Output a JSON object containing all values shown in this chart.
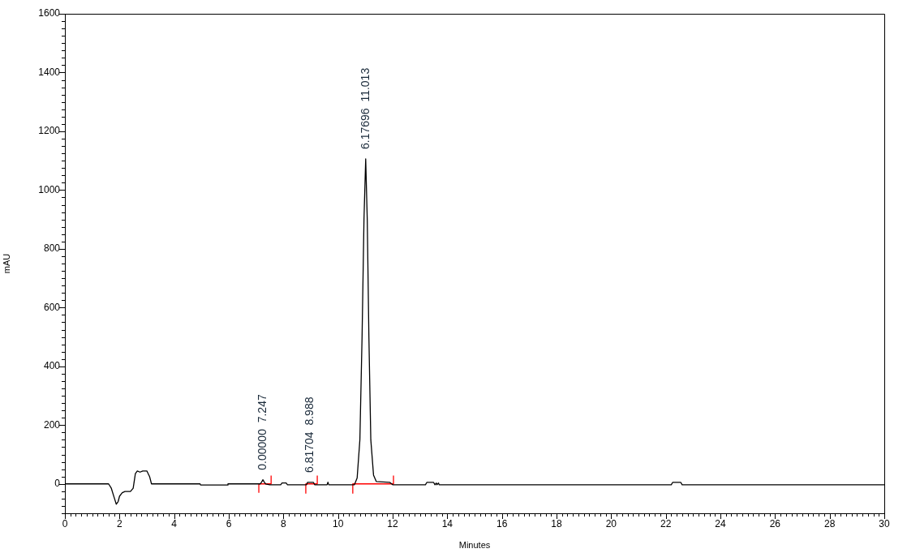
{
  "chart_data": {
    "type": "line",
    "xlabel": "Minutes",
    "ylabel": "mAU",
    "marker": "none",
    "xlim": [
      0,
      30
    ],
    "ylim": [
      -100,
      1600
    ],
    "xticks": [
      0,
      {
        "value": 0.2,
        "label": null
      },
      {
        "value": 0.4,
        "label": null
      },
      {
        "value": 0.6,
        "label": null
      },
      {
        "value": 0.8,
        "label": null
      },
      {
        "value": 1,
        "label": null
      },
      {
        "value": 1.2,
        "label": null
      },
      {
        "value": 1.4,
        "label": null
      },
      {
        "value": 1.6,
        "label": null
      },
      {
        "value": 1.8,
        "label": null
      },
      2,
      {
        "value": 2.2,
        "label": null
      },
      {
        "value": 2.4,
        "label": null
      },
      {
        "value": 2.6,
        "label": null
      },
      {
        "value": 2.8,
        "label": null
      },
      {
        "value": 3,
        "label": null
      },
      {
        "value": 3.2,
        "label": null
      },
      {
        "value": 3.4,
        "label": null
      },
      {
        "value": 3.6,
        "label": null
      },
      {
        "value": 3.8,
        "label": null
      },
      4,
      {
        "value": 4.2,
        "label": null
      },
      {
        "value": 4.4,
        "label": null
      },
      {
        "value": 4.6,
        "label": null
      },
      {
        "value": 4.8,
        "label": null
      },
      {
        "value": 5,
        "label": null
      },
      {
        "value": 5.2,
        "label": null
      },
      {
        "value": 5.4,
        "label": null
      },
      {
        "value": 5.6,
        "label": null
      },
      {
        "value": 5.8,
        "label": null
      },
      6,
      {
        "value": 6.2,
        "label": null
      },
      {
        "value": 6.4,
        "label": null
      },
      {
        "value": 6.6,
        "label": null
      },
      {
        "value": 6.8,
        "label": null
      },
      {
        "value": 7,
        "label": null
      },
      {
        "value": 7.2,
        "label": null
      },
      {
        "value": 7.4,
        "label": null
      },
      {
        "value": 7.6,
        "label": null
      },
      {
        "value": 7.8,
        "label": null
      },
      8,
      {
        "value": 8.2,
        "label": null
      },
      {
        "value": 8.4,
        "label": null
      },
      {
        "value": 8.6,
        "label": null
      },
      {
        "value": 8.8,
        "label": null
      },
      {
        "value": 9,
        "label": null
      },
      {
        "value": 9.2,
        "label": null
      },
      {
        "value": 9.4,
        "label": null
      },
      {
        "value": 9.6,
        "label": null
      },
      {
        "value": 9.8,
        "label": null
      },
      10,
      {
        "value": 10.2,
        "label": null
      },
      {
        "value": 10.4,
        "label": null
      },
      {
        "value": 10.6,
        "label": null
      },
      {
        "value": 10.8,
        "label": null
      },
      {
        "value": 11,
        "label": null
      },
      {
        "value": 11.2,
        "label": null
      },
      {
        "value": 11.4,
        "label": null
      },
      {
        "value": 11.6,
        "label": null
      },
      {
        "value": 11.8,
        "label": null
      },
      12,
      {
        "value": 12.2,
        "label": null
      },
      {
        "value": 12.4,
        "label": null
      },
      {
        "value": 12.6,
        "label": null
      },
      {
        "value": 12.8,
        "label": null
      },
      {
        "value": 13,
        "label": null
      },
      {
        "value": 13.2,
        "label": null
      },
      {
        "value": 13.4,
        "label": null
      },
      {
        "value": 13.6,
        "label": null
      },
      {
        "value": 13.8,
        "label": null
      },
      14,
      {
        "value": 14.2,
        "label": null
      },
      {
        "value": 14.4,
        "label": null
      },
      {
        "value": 14.6,
        "label": null
      },
      {
        "value": 14.8,
        "label": null
      },
      {
        "value": 15,
        "label": null
      },
      {
        "value": 15.2,
        "label": null
      },
      {
        "value": 15.4,
        "label": null
      },
      {
        "value": 15.6,
        "label": null
      },
      {
        "value": 15.8,
        "label": null
      },
      16,
      {
        "value": 16.2,
        "label": null
      },
      {
        "value": 16.4,
        "label": null
      },
      {
        "value": 16.6,
        "label": null
      },
      {
        "value": 16.8,
        "label": null
      },
      {
        "value": 17,
        "label": null
      },
      {
        "value": 17.2,
        "label": null
      },
      {
        "value": 17.4,
        "label": null
      },
      {
        "value": 17.6,
        "label": null
      },
      {
        "value": 17.8,
        "label": null
      },
      18,
      {
        "value": 18.2,
        "label": null
      },
      {
        "value": 18.4,
        "label": null
      },
      {
        "value": 18.6,
        "label": null
      },
      {
        "value": 18.8,
        "label": null
      },
      {
        "value": 19,
        "label": null
      },
      {
        "value": 19.2,
        "label": null
      },
      {
        "value": 19.4,
        "label": null
      },
      {
        "value": 19.6,
        "label": null
      },
      {
        "value": 19.8,
        "label": null
      },
      20,
      {
        "value": 20.2,
        "label": null
      },
      {
        "value": 20.4,
        "label": null
      },
      {
        "value": 20.6,
        "label": null
      },
      {
        "value": 20.8,
        "label": null
      },
      {
        "value": 21,
        "label": null
      },
      {
        "value": 21.2,
        "label": null
      },
      {
        "value": 21.4,
        "label": null
      },
      {
        "value": 21.6,
        "label": null
      },
      {
        "value": 21.8,
        "label": null
      },
      22,
      {
        "value": 22.2,
        "label": null
      },
      {
        "value": 22.4,
        "label": null
      },
      {
        "value": 22.6,
        "label": null
      },
      {
        "value": 22.8,
        "label": null
      },
      {
        "value": 23,
        "label": null
      },
      {
        "value": 23.2,
        "label": null
      },
      {
        "value": 23.4,
        "label": null
      },
      {
        "value": 23.6,
        "label": null
      },
      {
        "value": 23.8,
        "label": null
      },
      24,
      {
        "value": 24.2,
        "label": null
      },
      {
        "value": 24.4,
        "label": null
      },
      {
        "value": 24.6,
        "label": null
      },
      {
        "value": 24.8,
        "label": null
      },
      {
        "value": 25,
        "label": null
      },
      {
        "value": 25.2,
        "label": null
      },
      {
        "value": 25.4,
        "label": null
      },
      {
        "value": 25.6,
        "label": null
      },
      {
        "value": 25.8,
        "label": null
      },
      26,
      {
        "value": 26.2,
        "label": null
      },
      {
        "value": 26.4,
        "label": null
      },
      {
        "value": 26.6,
        "label": null
      },
      {
        "value": 26.8,
        "label": null
      },
      {
        "value": 27,
        "label": null
      },
      {
        "value": 27.2,
        "label": null
      },
      {
        "value": 27.4,
        "label": null
      },
      {
        "value": 27.6,
        "label": null
      },
      {
        "value": 27.8,
        "label": null
      },
      28,
      {
        "value": 28.2,
        "label": null
      },
      {
        "value": 28.4,
        "label": null
      },
      {
        "value": 28.6,
        "label": null
      },
      {
        "value": 28.8,
        "label": null
      },
      {
        "value": 29,
        "label": null
      },
      {
        "value": 29.2,
        "label": null
      },
      {
        "value": 29.4,
        "label": null
      },
      {
        "value": 29.6,
        "label": null
      },
      {
        "value": 29.8,
        "label": null
      },
      30
    ],
    "yticks": [
      {
        "value": -100,
        "label": null
      },
      {
        "value": -75,
        "label": null
      },
      {
        "value": -50,
        "label": null
      },
      {
        "value": -25,
        "label": null
      },
      0,
      {
        "value": 25,
        "label": null
      },
      {
        "value": 50,
        "label": null
      },
      {
        "value": 75,
        "label": null
      },
      {
        "value": 100,
        "label": null
      },
      {
        "value": 125,
        "label": null
      },
      {
        "value": 150,
        "label": null
      },
      {
        "value": 175,
        "label": null
      },
      200,
      {
        "value": 225,
        "label": null
      },
      {
        "value": 250,
        "label": null
      },
      {
        "value": 275,
        "label": null
      },
      {
        "value": 300,
        "label": null
      },
      {
        "value": 325,
        "label": null
      },
      {
        "value": 350,
        "label": null
      },
      {
        "value": 375,
        "label": null
      },
      400,
      {
        "value": 425,
        "label": null
      },
      {
        "value": 450,
        "label": null
      },
      {
        "value": 475,
        "label": null
      },
      {
        "value": 500,
        "label": null
      },
      {
        "value": 525,
        "label": null
      },
      {
        "value": 550,
        "label": null
      },
      {
        "value": 575,
        "label": null
      },
      600,
      {
        "value": 625,
        "label": null
      },
      {
        "value": 650,
        "label": null
      },
      {
        "value": 675,
        "label": null
      },
      {
        "value": 700,
        "label": null
      },
      {
        "value": 725,
        "label": null
      },
      {
        "value": 750,
        "label": null
      },
      {
        "value": 775,
        "label": null
      },
      800,
      {
        "value": 825,
        "label": null
      },
      {
        "value": 850,
        "label": null
      },
      {
        "value": 875,
        "label": null
      },
      {
        "value": 900,
        "label": null
      },
      {
        "value": 925,
        "label": null
      },
      {
        "value": 950,
        "label": null
      },
      {
        "value": 975,
        "label": null
      },
      1000,
      {
        "value": 1025,
        "label": null
      },
      {
        "value": 1050,
        "label": null
      },
      {
        "value": 1075,
        "label": null
      },
      {
        "value": 1100,
        "label": null
      },
      {
        "value": 1125,
        "label": null
      },
      {
        "value": 1150,
        "label": null
      },
      {
        "value": 1175,
        "label": null
      },
      1200,
      {
        "value": 1225,
        "label": null
      },
      {
        "value": 1250,
        "label": null
      },
      {
        "value": 1275,
        "label": null
      },
      {
        "value": 1300,
        "label": null
      },
      {
        "value": 1325,
        "label": null
      },
      {
        "value": 1350,
        "label": null
      },
      {
        "value": 1375,
        "label": null
      },
      1400,
      {
        "value": 1425,
        "label": null
      },
      {
        "value": 1450,
        "label": null
      },
      {
        "value": 1475,
        "label": null
      },
      {
        "value": 1500,
        "label": null
      },
      {
        "value": 1525,
        "label": null
      },
      {
        "value": 1550,
        "label": null
      },
      {
        "value": 1575,
        "label": null
      },
      1600
    ],
    "series": [
      {
        "color": "#000000",
        "x": [
          0,
          1.6,
          1.7,
          1.8,
          1.88,
          1.95,
          2.0,
          2.1,
          2.2,
          2.4,
          2.5,
          2.58,
          2.65,
          2.75,
          2.85,
          3.0,
          3.1,
          3.17,
          4.95,
          4.97,
          5.95,
          5.97,
          7.15,
          7.2,
          7.25,
          7.3,
          7.35,
          7.5,
          7.9,
          7.95,
          8.1,
          8.15,
          8.85,
          8.88,
          9.1,
          9.15,
          9.6,
          9.63,
          9.66,
          10.6,
          10.7,
          10.8,
          10.88,
          10.95,
          11.013,
          11.07,
          11.13,
          11.2,
          11.3,
          11.4,
          11.9,
          12.0,
          13.2,
          13.25,
          13.5,
          13.55,
          13.6,
          13.62,
          13.68,
          13.7,
          22.2,
          22.25,
          22.55,
          22.6,
          30
        ],
        "values": [
          0,
          0,
          -15,
          -45,
          -69,
          -60,
          -42,
          -30,
          -26,
          -26,
          -15,
          35,
          44,
          40,
          44,
          44,
          25,
          0,
          0,
          -4,
          -4,
          0,
          0,
          6,
          14,
          6,
          0,
          -3,
          -3,
          3,
          3,
          -3,
          -3,
          5,
          5,
          -3,
          -3,
          6,
          -3,
          -3,
          20,
          150,
          500,
          900,
          1106,
          900,
          500,
          150,
          30,
          8,
          5,
          -3,
          -3,
          5,
          5,
          -3,
          3,
          -3,
          3,
          -3,
          -3,
          5,
          5,
          -3,
          -3
        ]
      },
      {
        "color": "#ff0000",
        "x": [
          7.1,
          7.1,
          7.55,
          7.55,
          8,
          8.82,
          8.82,
          9.24,
          9.24,
          10,
          10.54,
          10.54,
          12.03,
          12.03
        ],
        "values": [
          -30,
          0,
          0,
          28,
          null,
          -33,
          0,
          0,
          28,
          null,
          -33,
          0,
          0,
          28
        ]
      }
    ],
    "annotations": [
      {
        "text": "0.00000  7.247",
        "x": 7.247,
        "y": 14
      },
      {
        "text": "6.81704  8.988",
        "x": 8.988,
        "y": 5
      },
      {
        "text": "6.17696  11.013",
        "x": 11.013,
        "y": 1106
      }
    ]
  }
}
